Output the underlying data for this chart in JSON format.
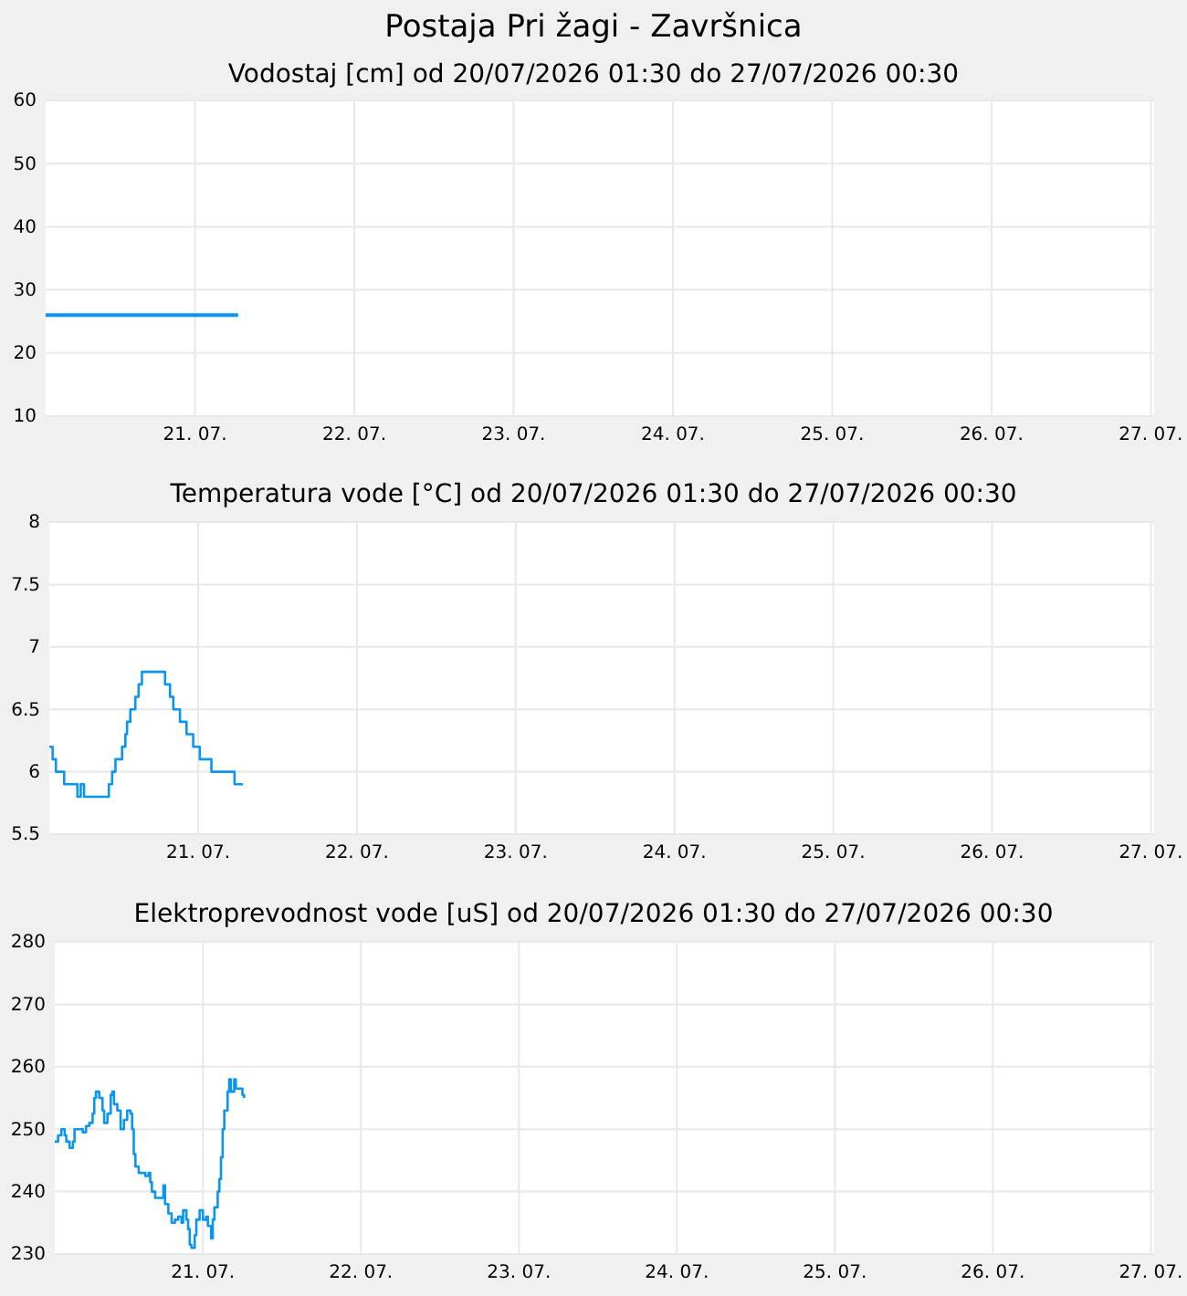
{
  "chart_data": [
    {
      "type": "line",
      "title": "Postaja Pri žagi - Završnica",
      "subtitle": "Vodostaj [cm] od 20/07/2026 01:30 do 27/07/2026 00:30",
      "grid": true,
      "xlim": [
        "2026-07-20T01:30",
        "2026-07-27T00:30"
      ],
      "xticks": [
        {
          "value": "2026-07-21",
          "label": "21. 07."
        },
        {
          "value": "2026-07-22",
          "label": "22. 07."
        },
        {
          "value": "2026-07-23",
          "label": "23. 07."
        },
        {
          "value": "2026-07-24",
          "label": "24. 07."
        },
        {
          "value": "2026-07-25",
          "label": "25. 07."
        },
        {
          "value": "2026-07-26",
          "label": "26. 07."
        },
        {
          "value": "2026-07-27",
          "label": "27. 07."
        }
      ],
      "ylim": [
        10,
        60
      ],
      "yticks": [
        10,
        20,
        30,
        40,
        50,
        60
      ],
      "series": [
        {
          "color": "#0a96f0",
          "x": [
            "2026-07-20T01:30",
            "2026-07-21T06:30"
          ],
          "values": [
            26,
            26
          ]
        }
      ]
    },
    {
      "type": "step",
      "title": "Temperatura vode [°C] od 20/07/2026 01:30 do 27/07/2026 00:30",
      "grid": true,
      "xlim": [
        "2026-07-20T01:30",
        "2026-07-27T00:30"
      ],
      "xticks": [
        {
          "value": "2026-07-21",
          "label": "21. 07."
        },
        {
          "value": "2026-07-22",
          "label": "22. 07."
        },
        {
          "value": "2026-07-23",
          "label": "23. 07."
        },
        {
          "value": "2026-07-24",
          "label": "24. 07."
        },
        {
          "value": "2026-07-25",
          "label": "25. 07."
        },
        {
          "value": "2026-07-26",
          "label": "26. 07."
        },
        {
          "value": "2026-07-27",
          "label": "27. 07."
        }
      ],
      "ylim": [
        5.5,
        8
      ],
      "yticks": [
        5.5,
        6,
        6.5,
        7,
        7.5,
        8
      ],
      "series": [
        {
          "color": "#0a96f0",
          "x": [
            "2026-07-20T01:30",
            "2026-07-20T02:00",
            "2026-07-20T02:30",
            "2026-07-20T03:45",
            "2026-07-20T05:30",
            "2026-07-20T05:45",
            "2026-07-20T06:15",
            "2026-07-20T06:30",
            "2026-07-20T06:45",
            "2026-07-20T10:00",
            "2026-07-20T10:30",
            "2026-07-20T11:00",
            "2026-07-20T11:30",
            "2026-07-20T12:30",
            "2026-07-20T13:00",
            "2026-07-20T13:15",
            "2026-07-20T13:45",
            "2026-07-20T14:30",
            "2026-07-20T15:00",
            "2026-07-20T15:30",
            "2026-07-20T18:15",
            "2026-07-20T19:00",
            "2026-07-20T19:45",
            "2026-07-20T20:15",
            "2026-07-20T21:15",
            "2026-07-20T22:15",
            "2026-07-20T23:15",
            "2026-07-21T00:15",
            "2026-07-21T01:30",
            "2026-07-21T02:00",
            "2026-07-21T05:00",
            "2026-07-21T05:30",
            "2026-07-21T06:45"
          ],
          "values": [
            6.2,
            6.1,
            6.0,
            5.9,
            5.9,
            5.8,
            5.9,
            5.9,
            5.8,
            5.8,
            5.9,
            6.0,
            6.1,
            6.2,
            6.3,
            6.4,
            6.5,
            6.6,
            6.7,
            6.8,
            6.8,
            6.7,
            6.6,
            6.5,
            6.4,
            6.3,
            6.2,
            6.1,
            6.1,
            6.0,
            6.0,
            5.9,
            5.9
          ]
        }
      ]
    },
    {
      "type": "step",
      "title": "Elektroprevodnost vode [uS] od 20/07/2026 01:30 do 27/07/2026 00:30",
      "grid": true,
      "xlim": [
        "2026-07-20T01:30",
        "2026-07-27T00:30"
      ],
      "xticks": [
        {
          "value": "2026-07-21",
          "label": "21. 07."
        },
        {
          "value": "2026-07-22",
          "label": "22. 07."
        },
        {
          "value": "2026-07-23",
          "label": "23. 07."
        },
        {
          "value": "2026-07-24",
          "label": "24. 07."
        },
        {
          "value": "2026-07-25",
          "label": "25. 07."
        },
        {
          "value": "2026-07-26",
          "label": "26. 07."
        },
        {
          "value": "2026-07-27",
          "label": "27. 07."
        }
      ],
      "ylim": [
        230,
        280
      ],
      "yticks": [
        230,
        240,
        250,
        260,
        270,
        280
      ],
      "series": [
        {
          "color": "#0a96f0",
          "x": [
            "2026-07-20T01:30",
            "2026-07-20T02:00",
            "2026-07-20T02:30",
            "2026-07-20T03:00",
            "2026-07-20T03:15",
            "2026-07-20T03:45",
            "2026-07-20T04:15",
            "2026-07-20T04:30",
            "2026-07-20T05:45",
            "2026-07-20T06:15",
            "2026-07-20T06:45",
            "2026-07-20T07:15",
            "2026-07-20T07:30",
            "2026-07-20T07:45",
            "2026-07-20T08:15",
            "2026-07-20T08:45",
            "2026-07-20T09:00",
            "2026-07-20T09:30",
            "2026-07-20T10:00",
            "2026-07-20T10:15",
            "2026-07-20T10:30",
            "2026-07-20T11:00",
            "2026-07-20T11:30",
            "2026-07-20T12:00",
            "2026-07-20T12:30",
            "2026-07-20T13:00",
            "2026-07-20T13:15",
            "2026-07-20T13:30",
            "2026-07-20T13:45",
            "2026-07-20T14:15",
            "2026-07-20T15:00",
            "2026-07-20T15:15",
            "2026-07-20T15:45",
            "2026-07-20T16:00",
            "2026-07-20T16:15",
            "2026-07-20T16:45",
            "2026-07-20T17:30",
            "2026-07-20T18:00",
            "2026-07-20T18:15",
            "2026-07-20T18:45",
            "2026-07-20T19:15",
            "2026-07-20T19:45",
            "2026-07-20T20:15",
            "2026-07-20T20:45",
            "2026-07-20T21:00",
            "2026-07-20T21:30",
            "2026-07-20T21:45",
            "2026-07-20T22:00",
            "2026-07-20T22:15",
            "2026-07-20T22:45",
            "2026-07-20T23:00",
            "2026-07-20T23:30",
            "2026-07-21T00:00",
            "2026-07-21T00:30",
            "2026-07-21T00:45",
            "2026-07-21T01:15",
            "2026-07-21T01:30",
            "2026-07-21T01:45",
            "2026-07-21T02:15",
            "2026-07-21T02:30",
            "2026-07-21T02:45",
            "2026-07-21T03:00",
            "2026-07-21T03:15",
            "2026-07-21T03:45",
            "2026-07-21T04:00",
            "2026-07-21T04:15",
            "2026-07-21T04:45",
            "2026-07-21T05:00",
            "2026-07-21T05:30",
            "2026-07-21T06:00",
            "2026-07-21T06:15"
          ],
          "values": [
            248,
            249,
            250,
            249,
            248,
            247,
            248,
            250,
            249.5,
            250.5,
            251,
            252.5,
            255,
            256,
            255,
            253,
            251,
            252.5,
            255.5,
            256,
            254,
            253,
            250,
            251.5,
            253,
            252.5,
            250,
            246,
            244,
            243,
            243,
            242.5,
            243,
            241.5,
            240,
            239,
            239,
            241,
            238,
            236.5,
            235,
            235.5,
            236,
            235,
            237,
            235.5,
            234,
            231.5,
            231,
            233,
            235.5,
            237,
            235.5,
            236,
            234.5,
            232.5,
            235.5,
            237.5,
            240,
            242,
            245.5,
            250,
            253,
            256,
            258,
            256,
            258,
            256.5,
            256.5,
            255.5,
            255
          ]
        }
      ]
    }
  ]
}
